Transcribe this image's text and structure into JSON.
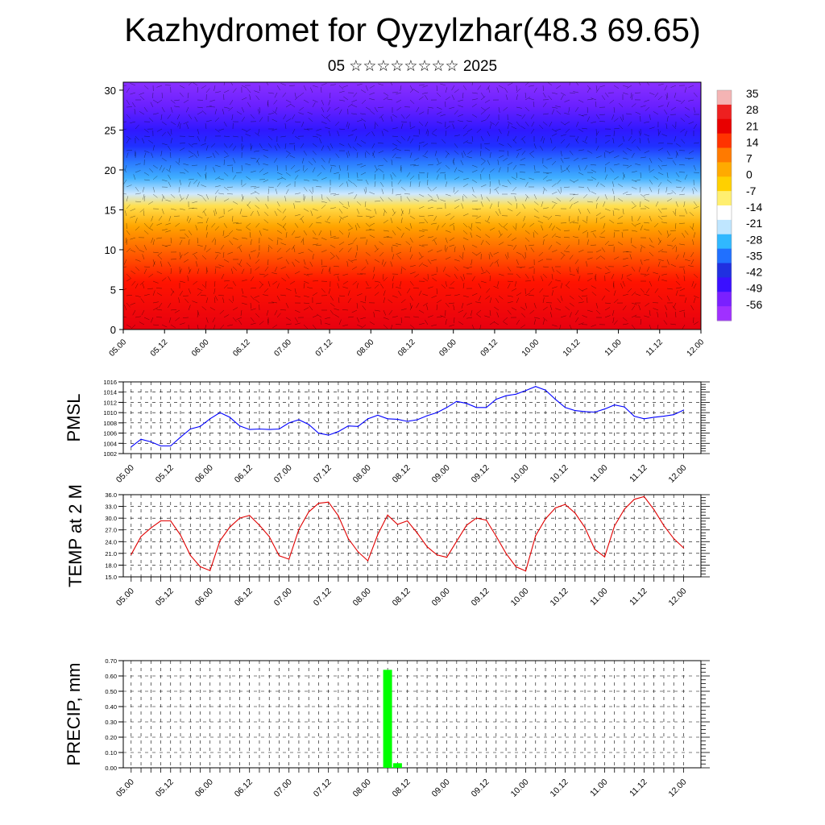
{
  "header": {
    "title": "Kazhydromet for Qyzylzhar(48.3 69.65)",
    "subtitle": "05 ☆☆☆☆☆☆☆☆ 2025"
  },
  "colors": {
    "pmsl_line": "#0000ff",
    "temp_line": "#e00000",
    "precip_bar": "#00ff00"
  },
  "chart_data": [
    {
      "type": "heatmap",
      "name": "cross-section",
      "x_ticks": [
        "05.00",
        "05.12",
        "06.00",
        "06.12",
        "07.00",
        "07.12",
        "08.00",
        "08.12",
        "09.00",
        "09.12",
        "10.00",
        "10.12",
        "11.00",
        "11.12",
        "12.00"
      ],
      "y_ticks": [
        0,
        5,
        10,
        15,
        20,
        25,
        30
      ],
      "ylim": [
        0,
        31
      ],
      "colorbar_labels": [
        35,
        28,
        21,
        14,
        7,
        0,
        -7,
        -14,
        -21,
        -28,
        -35,
        -42,
        -49,
        -56
      ],
      "colorbar_palette": [
        "#f4b4b4",
        "#ee2020",
        "#e80000",
        "#ff3300",
        "#ff7a00",
        "#ffaa00",
        "#ffd000",
        "#ffef70",
        "#ffffff",
        "#bfe6ff",
        "#30b8ff",
        "#2070ff",
        "#2030e0",
        "#3a10ff",
        "#7a20ff",
        "#a030ff"
      ],
      "bands": [
        {
          "h": 0,
          "color": "#e70010"
        },
        {
          "h": 6,
          "color": "#ff1400"
        },
        {
          "h": 10,
          "color": "#ff6600"
        },
        {
          "h": 13,
          "color": "#ffa600"
        },
        {
          "h": 15.5,
          "color": "#ffe050"
        },
        {
          "h": 17,
          "color": "#cfe9ff"
        },
        {
          "h": 19,
          "color": "#40b0ff"
        },
        {
          "h": 21,
          "color": "#2a78ff"
        },
        {
          "h": 23,
          "color": "#2030ff"
        },
        {
          "h": 25,
          "color": "#3018ff"
        },
        {
          "h": 28,
          "color": "#6a20ff"
        },
        {
          "h": 31,
          "color": "#8a30ff"
        }
      ]
    },
    {
      "type": "line",
      "name": "pmsl",
      "ylabel": "PMSL",
      "ylim": [
        1002,
        1016
      ],
      "y_ticks": [
        1002,
        1004,
        1006,
        1008,
        1010,
        1012,
        1014,
        1016
      ],
      "x_ticks": [
        "05.00",
        "05.12",
        "06.00",
        "06.12",
        "07.00",
        "07.12",
        "08.00",
        "08.12",
        "09.00",
        "09.12",
        "10.00",
        "10.12",
        "11.00",
        "11.12",
        "12.00"
      ],
      "x_start": 5.0,
      "x_step": 0.125,
      "values": [
        1003.3,
        1004.8,
        1004.3,
        1003.5,
        1003.5,
        1005.2,
        1006.8,
        1007.3,
        1008.8,
        1010.0,
        1009.1,
        1007.4,
        1006.7,
        1006.8,
        1006.7,
        1006.8,
        1008.0,
        1008.6,
        1007.7,
        1006.0,
        1005.6,
        1006.3,
        1007.4,
        1007.3,
        1008.8,
        1009.5,
        1008.8,
        1008.7,
        1008.3,
        1008.6,
        1009.4,
        1010.0,
        1011.0,
        1012.2,
        1011.8,
        1011.0,
        1011.0,
        1012.6,
        1013.3,
        1013.6,
        1014.3,
        1015.1,
        1014.4,
        1012.6,
        1011.0,
        1010.4,
        1010.2,
        1010.1,
        1010.7,
        1011.5,
        1011.1,
        1009.3,
        1008.8,
        1009.1,
        1009.3,
        1009.6,
        1010.5
      ]
    },
    {
      "type": "line",
      "name": "temperature",
      "ylabel": "TEMP at 2 M",
      "ylim": [
        15,
        36
      ],
      "y_ticks": [
        "15.0",
        "18.0",
        "21.0",
        "24.0",
        "27.0",
        "30.0",
        "33.0",
        "36.0"
      ],
      "x_ticks": [
        "05.00",
        "05.12",
        "06.00",
        "06.12",
        "07.00",
        "07.12",
        "08.00",
        "08.12",
        "09.00",
        "09.12",
        "10.00",
        "10.12",
        "11.00",
        "11.12",
        "12.00"
      ],
      "x_start": 5.0,
      "x_step": 0.125,
      "values": [
        20.7,
        25.3,
        27.5,
        29.3,
        29.3,
        25.7,
        20.5,
        17.6,
        16.6,
        24.2,
        27.7,
        30.0,
        30.7,
        28.2,
        25.3,
        20.4,
        19.5,
        27.1,
        31.6,
        33.8,
        34.1,
        30.6,
        24.8,
        21.4,
        19.1,
        25.8,
        30.8,
        28.4,
        29.3,
        26.2,
        22.7,
        20.6,
        20.0,
        24.1,
        28.2,
        30.0,
        29.5,
        25.4,
        21.0,
        17.6,
        16.5,
        25.5,
        29.8,
        32.6,
        33.5,
        31.3,
        27.6,
        22.0,
        20.1,
        28.0,
        32.3,
        34.8,
        35.5,
        32.2,
        28.1,
        24.8,
        22.4
      ]
    },
    {
      "type": "bar",
      "name": "precipitation",
      "ylabel": "PRECIP, mm",
      "ylim": [
        0,
        0.7
      ],
      "y_ticks": [
        "0.00",
        "0.10",
        "0.20",
        "0.30",
        "0.40",
        "0.50",
        "0.60",
        "0.70"
      ],
      "x_ticks": [
        "05.00",
        "05.12",
        "06.00",
        "06.12",
        "07.00",
        "07.12",
        "08.00",
        "08.12",
        "09.00",
        "09.12",
        "10.00",
        "10.12",
        "11.00",
        "11.12",
        "12.00"
      ],
      "bars": [
        {
          "x": 8.25,
          "value": 0.64
        },
        {
          "x": 8.375,
          "value": 0.03
        }
      ]
    }
  ]
}
